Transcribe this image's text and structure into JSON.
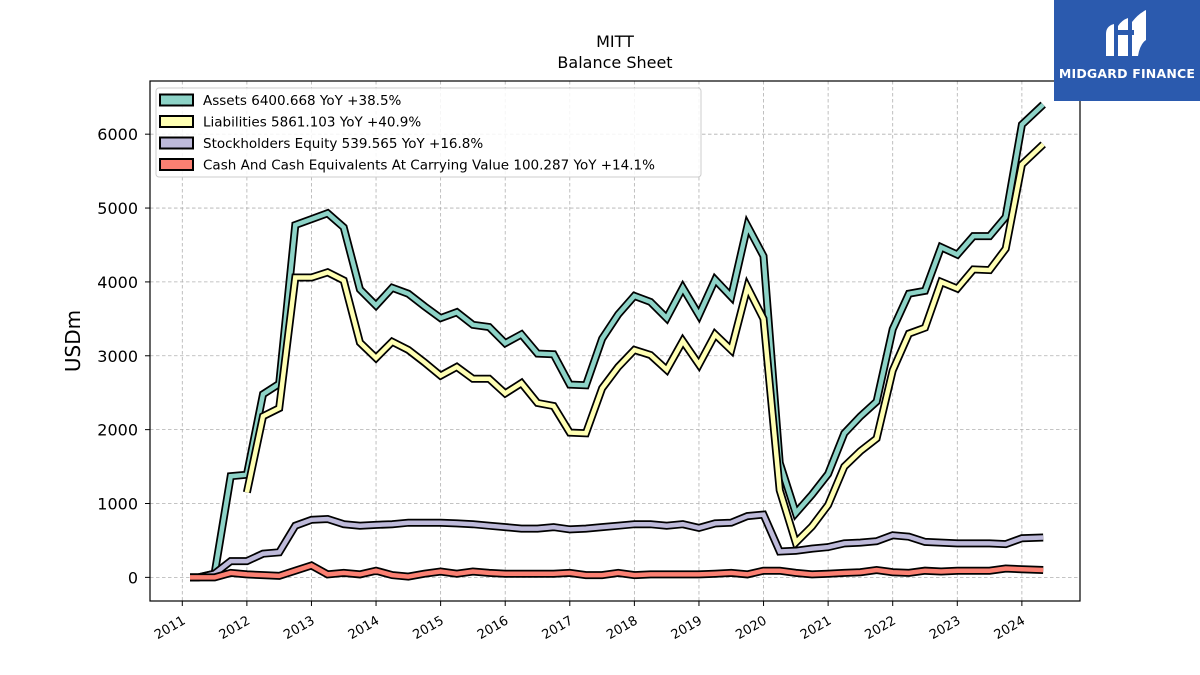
{
  "branding": {
    "logo_text": "MIDGARD FINANCE"
  },
  "chart_data": {
    "type": "line",
    "title": "MITT",
    "subtitle": "Balance  Sheet",
    "ylabel": "USDm",
    "xlabel": "",
    "ylim": [
      -320,
      6720
    ],
    "xlim": [
      2010.5,
      2024.9
    ],
    "yticks": [
      0,
      1000,
      2000,
      3000,
      4000,
      5000,
      6000
    ],
    "xticks": [
      2011,
      2012,
      2013,
      2014,
      2015,
      2016,
      2017,
      2018,
      2019,
      2020,
      2021,
      2022,
      2023,
      2024
    ],
    "grid": true,
    "legend_position": "top-left",
    "series": [
      {
        "name": "Assets",
        "legend": "Assets  6400.668 YoY +38.5%",
        "color": "#8dd3c7",
        "points": [
          [
            2011.12,
            0
          ],
          [
            2011.25,
            0
          ],
          [
            2011.5,
            50
          ],
          [
            2011.75,
            1370
          ],
          [
            2012.0,
            1390
          ],
          [
            2012.25,
            2480
          ],
          [
            2012.5,
            2620
          ],
          [
            2012.75,
            4770
          ],
          [
            2013.0,
            4850
          ],
          [
            2013.25,
            4930
          ],
          [
            2013.5,
            4740
          ],
          [
            2013.75,
            3900
          ],
          [
            2014.0,
            3680
          ],
          [
            2014.25,
            3920
          ],
          [
            2014.5,
            3840
          ],
          [
            2014.75,
            3670
          ],
          [
            2015.0,
            3510
          ],
          [
            2015.25,
            3590
          ],
          [
            2015.5,
            3420
          ],
          [
            2015.75,
            3390
          ],
          [
            2016.0,
            3170
          ],
          [
            2016.25,
            3290
          ],
          [
            2016.5,
            3030
          ],
          [
            2016.75,
            3020
          ],
          [
            2017.0,
            2610
          ],
          [
            2017.25,
            2600
          ],
          [
            2017.5,
            3230
          ],
          [
            2017.75,
            3560
          ],
          [
            2018.0,
            3810
          ],
          [
            2018.25,
            3730
          ],
          [
            2018.5,
            3510
          ],
          [
            2018.75,
            3920
          ],
          [
            2019.0,
            3550
          ],
          [
            2019.25,
            4030
          ],
          [
            2019.5,
            3800
          ],
          [
            2019.75,
            4760
          ],
          [
            2020.0,
            4350
          ],
          [
            2020.25,
            1550
          ],
          [
            2020.5,
            870
          ],
          [
            2020.75,
            1120
          ],
          [
            2021.0,
            1400
          ],
          [
            2021.25,
            1950
          ],
          [
            2021.5,
            2180
          ],
          [
            2021.75,
            2380
          ],
          [
            2022.0,
            3360
          ],
          [
            2022.25,
            3840
          ],
          [
            2022.5,
            3880
          ],
          [
            2022.75,
            4470
          ],
          [
            2023.0,
            4370
          ],
          [
            2023.25,
            4620
          ],
          [
            2023.5,
            4620
          ],
          [
            2023.75,
            4880
          ],
          [
            2024.0,
            6130
          ],
          [
            2024.33,
            6400.668
          ]
        ]
      },
      {
        "name": "Liabilities",
        "legend": "Liabilities  5861.103 YoY +40.9%",
        "color": "#ffffb3",
        "points": [
          [
            2012.0,
            1150
          ],
          [
            2012.25,
            2180
          ],
          [
            2012.5,
            2290
          ],
          [
            2012.75,
            4060
          ],
          [
            2013.0,
            4060
          ],
          [
            2013.25,
            4130
          ],
          [
            2013.5,
            4020
          ],
          [
            2013.75,
            3180
          ],
          [
            2014.0,
            2970
          ],
          [
            2014.25,
            3190
          ],
          [
            2014.5,
            3080
          ],
          [
            2014.75,
            2910
          ],
          [
            2015.0,
            2730
          ],
          [
            2015.25,
            2850
          ],
          [
            2015.5,
            2690
          ],
          [
            2015.75,
            2690
          ],
          [
            2016.0,
            2490
          ],
          [
            2016.25,
            2630
          ],
          [
            2016.5,
            2360
          ],
          [
            2016.75,
            2320
          ],
          [
            2017.0,
            1960
          ],
          [
            2017.25,
            1950
          ],
          [
            2017.5,
            2560
          ],
          [
            2017.75,
            2850
          ],
          [
            2018.0,
            3080
          ],
          [
            2018.25,
            3010
          ],
          [
            2018.5,
            2810
          ],
          [
            2018.75,
            3200
          ],
          [
            2019.0,
            2880
          ],
          [
            2019.25,
            3290
          ],
          [
            2019.5,
            3080
          ],
          [
            2019.75,
            3930
          ],
          [
            2020.0,
            3500
          ],
          [
            2020.25,
            1180
          ],
          [
            2020.5,
            470
          ],
          [
            2020.75,
            690
          ],
          [
            2021.0,
            980
          ],
          [
            2021.25,
            1500
          ],
          [
            2021.5,
            1710
          ],
          [
            2021.75,
            1880
          ],
          [
            2022.0,
            2800
          ],
          [
            2022.25,
            3300
          ],
          [
            2022.5,
            3380
          ],
          [
            2022.75,
            4000
          ],
          [
            2023.0,
            3910
          ],
          [
            2023.25,
            4170
          ],
          [
            2023.5,
            4160
          ],
          [
            2023.75,
            4450
          ],
          [
            2024.0,
            5590
          ],
          [
            2024.33,
            5861.103
          ]
        ]
      },
      {
        "name": "Stockholders Equity",
        "legend": "Stockholders Equity  539.565 YoY +16.8%",
        "color": "#bebada",
        "points": [
          [
            2011.12,
            0
          ],
          [
            2011.25,
            0
          ],
          [
            2011.5,
            50
          ],
          [
            2011.75,
            220
          ],
          [
            2012.0,
            220
          ],
          [
            2012.25,
            320
          ],
          [
            2012.5,
            340
          ],
          [
            2012.75,
            700
          ],
          [
            2013.0,
            780
          ],
          [
            2013.25,
            790
          ],
          [
            2013.5,
            720
          ],
          [
            2013.75,
            700
          ],
          [
            2014.0,
            710
          ],
          [
            2014.25,
            720
          ],
          [
            2014.5,
            740
          ],
          [
            2014.75,
            740
          ],
          [
            2015.0,
            740
          ],
          [
            2015.25,
            730
          ],
          [
            2015.5,
            720
          ],
          [
            2015.75,
            700
          ],
          [
            2016.0,
            680
          ],
          [
            2016.25,
            660
          ],
          [
            2016.5,
            660
          ],
          [
            2016.75,
            680
          ],
          [
            2017.0,
            650
          ],
          [
            2017.25,
            660
          ],
          [
            2017.5,
            680
          ],
          [
            2017.75,
            700
          ],
          [
            2018.0,
            720
          ],
          [
            2018.25,
            720
          ],
          [
            2018.5,
            700
          ],
          [
            2018.75,
            720
          ],
          [
            2019.0,
            670
          ],
          [
            2019.25,
            730
          ],
          [
            2019.5,
            740
          ],
          [
            2019.75,
            830
          ],
          [
            2020.0,
            850
          ],
          [
            2020.25,
            350
          ],
          [
            2020.5,
            360
          ],
          [
            2020.75,
            390
          ],
          [
            2021.0,
            410
          ],
          [
            2021.25,
            460
          ],
          [
            2021.5,
            470
          ],
          [
            2021.75,
            490
          ],
          [
            2022.0,
            570
          ],
          [
            2022.25,
            550
          ],
          [
            2022.5,
            480
          ],
          [
            2022.75,
            470
          ],
          [
            2023.0,
            460
          ],
          [
            2023.25,
            460
          ],
          [
            2023.5,
            460
          ],
          [
            2023.75,
            450
          ],
          [
            2024.0,
            530
          ],
          [
            2024.33,
            539.565
          ]
        ]
      },
      {
        "name": "Cash And Cash Equivalents At Carrying Value",
        "legend": "Cash And Cash Equivalents At Carrying Value  100.287 YoY +14.1%",
        "color": "#fb8072",
        "points": [
          [
            2011.12,
            0
          ],
          [
            2011.5,
            0
          ],
          [
            2011.75,
            60
          ],
          [
            2012.0,
            40
          ],
          [
            2012.25,
            30
          ],
          [
            2012.5,
            20
          ],
          [
            2012.75,
            90
          ],
          [
            2013.0,
            160
          ],
          [
            2013.25,
            40
          ],
          [
            2013.5,
            60
          ],
          [
            2013.75,
            40
          ],
          [
            2014.0,
            90
          ],
          [
            2014.25,
            30
          ],
          [
            2014.5,
            10
          ],
          [
            2014.75,
            50
          ],
          [
            2015.0,
            80
          ],
          [
            2015.25,
            50
          ],
          [
            2015.5,
            80
          ],
          [
            2015.75,
            60
          ],
          [
            2016.0,
            50
          ],
          [
            2016.25,
            50
          ],
          [
            2016.5,
            50
          ],
          [
            2016.75,
            50
          ],
          [
            2017.0,
            60
          ],
          [
            2017.25,
            30
          ],
          [
            2017.5,
            30
          ],
          [
            2017.75,
            60
          ],
          [
            2018.0,
            30
          ],
          [
            2018.25,
            40
          ],
          [
            2018.5,
            40
          ],
          [
            2018.75,
            40
          ],
          [
            2019.0,
            40
          ],
          [
            2019.25,
            50
          ],
          [
            2019.5,
            60
          ],
          [
            2019.75,
            40
          ],
          [
            2020.0,
            90
          ],
          [
            2020.25,
            90
          ],
          [
            2020.5,
            60
          ],
          [
            2020.75,
            40
          ],
          [
            2021.0,
            50
          ],
          [
            2021.25,
            60
          ],
          [
            2021.5,
            70
          ],
          [
            2021.75,
            100
          ],
          [
            2022.0,
            70
          ],
          [
            2022.25,
            60
          ],
          [
            2022.5,
            90
          ],
          [
            2022.75,
            80
          ],
          [
            2023.0,
            90
          ],
          [
            2023.25,
            90
          ],
          [
            2023.5,
            90
          ],
          [
            2023.75,
            120
          ],
          [
            2024.0,
            110
          ],
          [
            2024.33,
            100.287
          ]
        ]
      }
    ]
  }
}
